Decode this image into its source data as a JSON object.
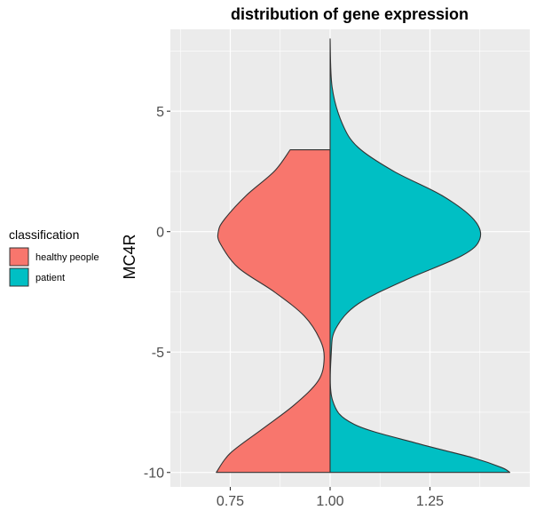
{
  "chart_data": {
    "type": "violin",
    "title": "distribution of gene expression",
    "xlabel": "",
    "ylabel": "MC4R",
    "xlim": [
      0.6,
      1.5
    ],
    "ylim": [
      -10.6,
      8.4
    ],
    "x_ticks": [
      0.75,
      1.0,
      1.25
    ],
    "x_tick_labels": [
      "0.75",
      "1.00",
      "1.25"
    ],
    "y_ticks": [
      5,
      0,
      -5,
      -10
    ],
    "y_tick_labels": [
      "5",
      "0",
      "-5",
      "-10"
    ],
    "grid": true,
    "legend": {
      "title": "classification",
      "position": "left",
      "entries": [
        {
          "label": "healthy people",
          "color": "#F8766D"
        },
        {
          "label": "patient",
          "color": "#00BFC4"
        }
      ]
    },
    "center_x": 1.0,
    "series": [
      {
        "name": "healthy people",
        "color": "#F8766D",
        "side": "left",
        "profile": [
          {
            "y": 3.4,
            "x": 0.9
          },
          {
            "y": 2.5,
            "x": 0.86
          },
          {
            "y": 1.5,
            "x": 0.79
          },
          {
            "y": 0.5,
            "x": 0.735
          },
          {
            "y": 0.0,
            "x": 0.72
          },
          {
            "y": -0.5,
            "x": 0.725
          },
          {
            "y": -1.5,
            "x": 0.77
          },
          {
            "y": -2.5,
            "x": 0.86
          },
          {
            "y": -3.5,
            "x": 0.935
          },
          {
            "y": -4.5,
            "x": 0.975
          },
          {
            "y": -5.3,
            "x": 0.985
          },
          {
            "y": -6.2,
            "x": 0.97
          },
          {
            "y": -7.2,
            "x": 0.91
          },
          {
            "y": -8.2,
            "x": 0.83
          },
          {
            "y": -9.2,
            "x": 0.75
          },
          {
            "y": -10.0,
            "x": 0.715
          }
        ]
      },
      {
        "name": "patient",
        "color": "#00BFC4",
        "side": "right",
        "profile": [
          {
            "y": 8.0,
            "x": 1.0
          },
          {
            "y": 6.0,
            "x": 1.005
          },
          {
            "y": 4.5,
            "x": 1.03
          },
          {
            "y": 3.5,
            "x": 1.07
          },
          {
            "y": 2.5,
            "x": 1.16
          },
          {
            "y": 1.5,
            "x": 1.28
          },
          {
            "y": 0.5,
            "x": 1.36
          },
          {
            "y": -0.3,
            "x": 1.375
          },
          {
            "y": -1.0,
            "x": 1.33
          },
          {
            "y": -2.0,
            "x": 1.19
          },
          {
            "y": -3.0,
            "x": 1.07
          },
          {
            "y": -4.0,
            "x": 1.015
          },
          {
            "y": -5.0,
            "x": 1.003
          },
          {
            "y": -7.0,
            "x": 1.006
          },
          {
            "y": -8.0,
            "x": 1.06
          },
          {
            "y": -8.8,
            "x": 1.22
          },
          {
            "y": -9.4,
            "x": 1.36
          },
          {
            "y": -9.8,
            "x": 1.43
          },
          {
            "y": -10.0,
            "x": 1.45
          }
        ]
      }
    ]
  }
}
